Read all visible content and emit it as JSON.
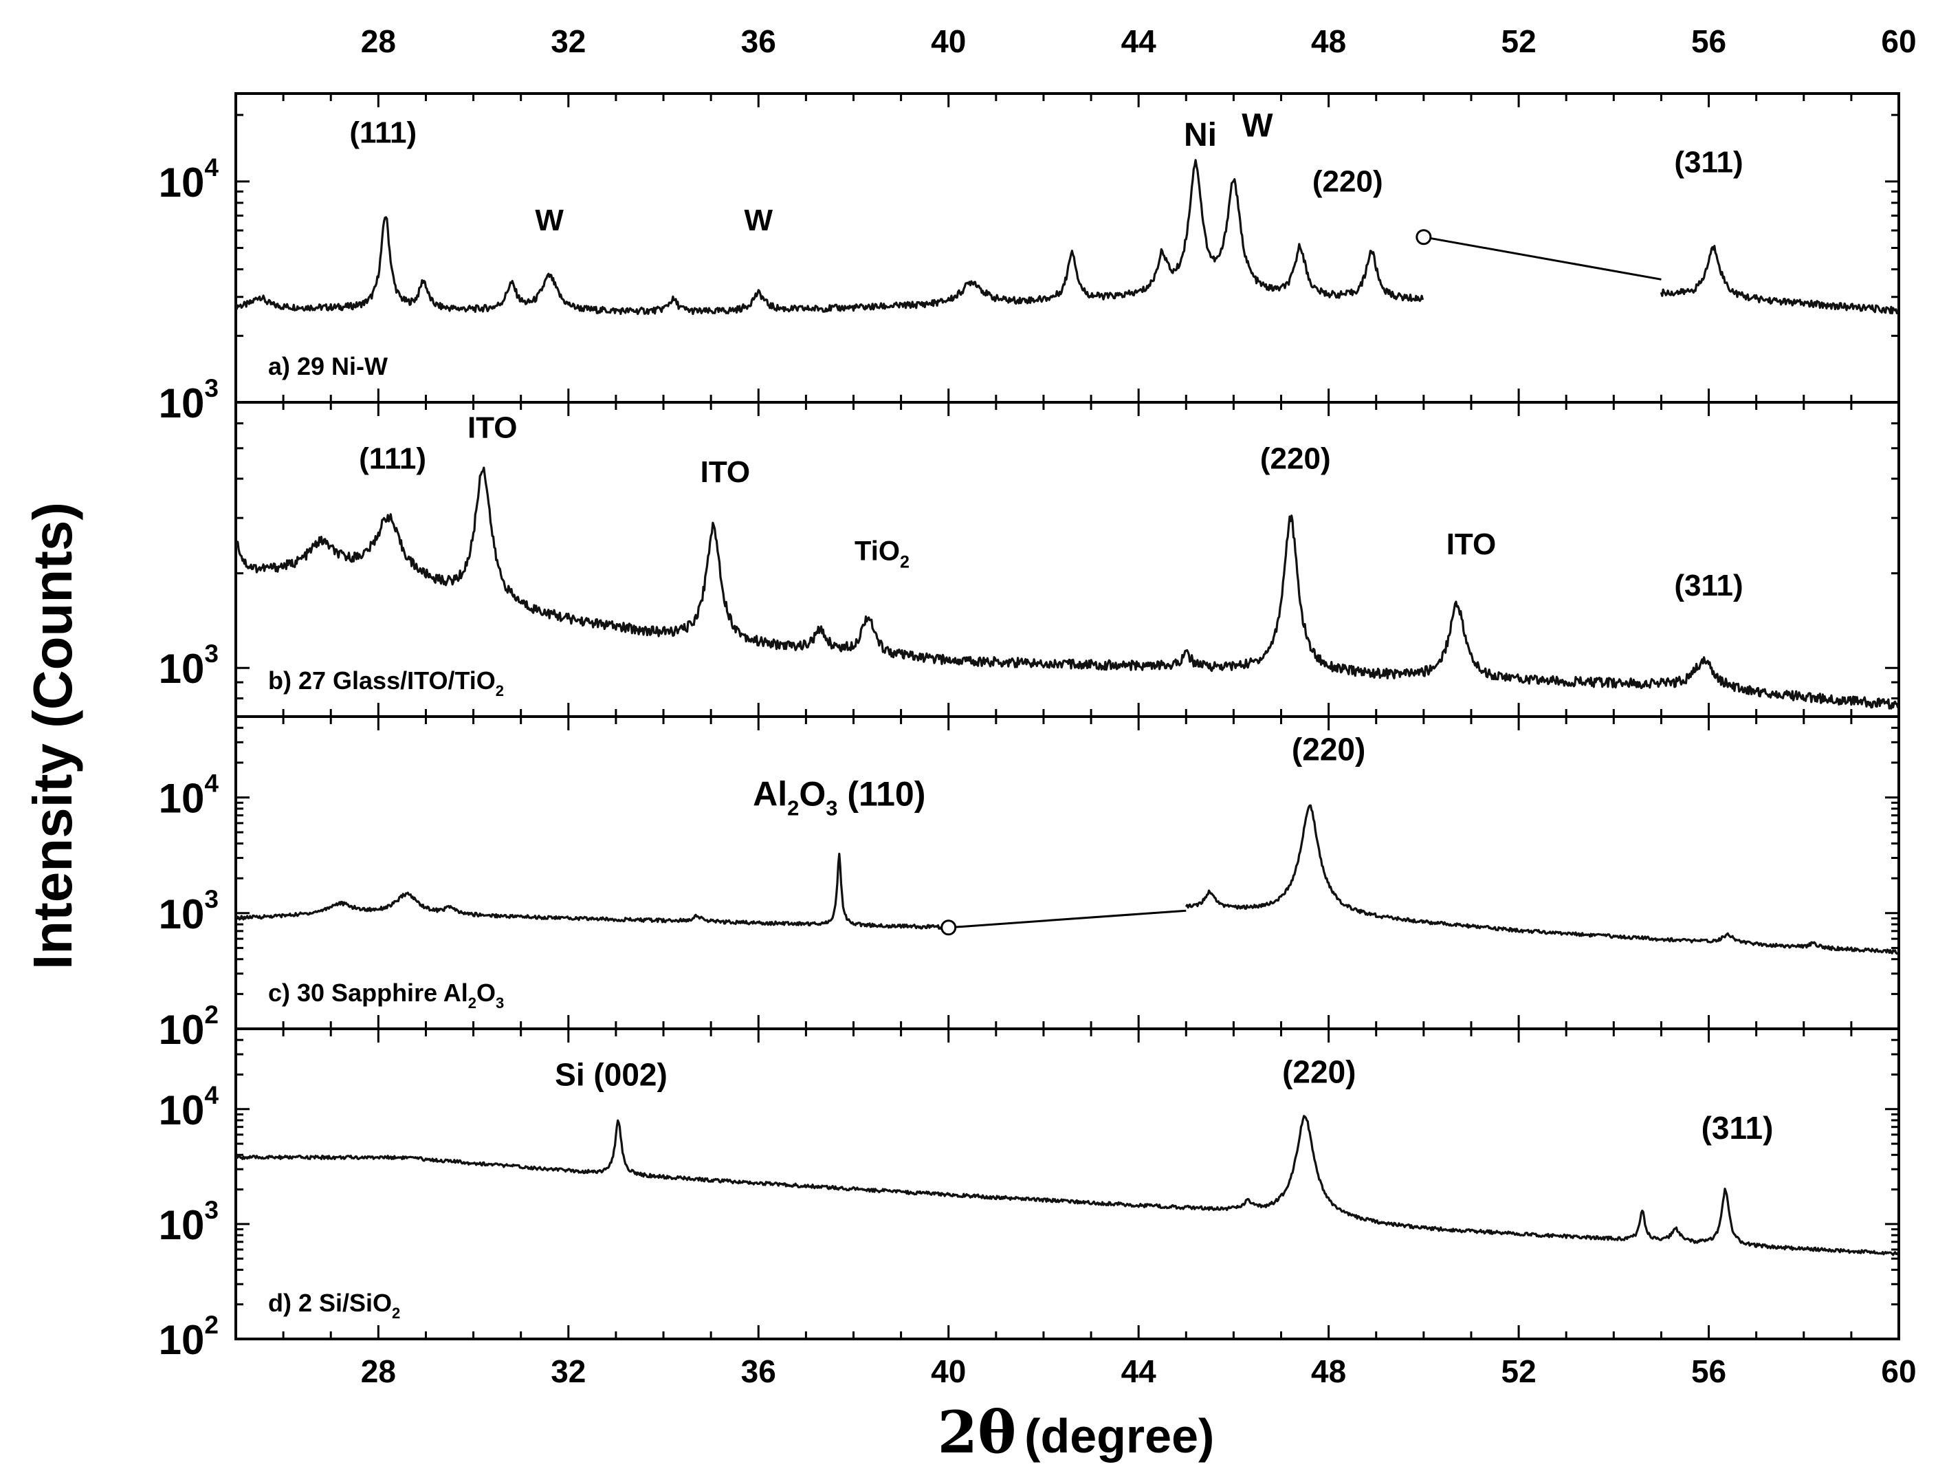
{
  "chart_data": {
    "type": "scatter",
    "x_axis": {
      "label_main": "2θ",
      "label_unit": "(degree)",
      "range": [
        25,
        60
      ],
      "ticks": [
        28,
        32,
        36,
        40,
        44,
        48,
        52,
        56,
        60
      ],
      "tick_labels": [
        "28",
        "32",
        "36",
        "40",
        "44",
        "48",
        "52",
        "56",
        "60"
      ],
      "top_ticks_mirrored": true
    },
    "y_axis": {
      "label": "Intensity (Counts)",
      "scale": "log"
    },
    "panels": [
      {
        "id": "a",
        "caption_main": "a) 29 Ni-W",
        "caption_sub": "",
        "caption_tail": "",
        "ylim": [
          1000,
          25000
        ],
        "y_tick_labels": [
          {
            "value": 10000,
            "base": "10",
            "exp": "4"
          },
          {
            "value": 1000,
            "base": "10",
            "exp": "3"
          }
        ],
        "baseline": [
          [
            25,
            2700
          ],
          [
            30,
            2600
          ],
          [
            35,
            2550
          ],
          [
            40,
            2750
          ],
          [
            45,
            3000
          ],
          [
            50,
            2900
          ],
          [
            55,
            3100
          ],
          [
            60,
            2600
          ]
        ],
        "peaks": [
          {
            "x": 25.5,
            "y": 3000,
            "w": 0.15
          },
          {
            "x": 28.15,
            "y": 7000,
            "w": 0.09
          },
          {
            "x": 28.95,
            "y": 3500,
            "w": 0.1
          },
          {
            "x": 30.8,
            "y": 3400,
            "w": 0.12
          },
          {
            "x": 31.6,
            "y": 3700,
            "w": 0.18
          },
          {
            "x": 34.2,
            "y": 2900,
            "w": 0.12
          },
          {
            "x": 36.0,
            "y": 3100,
            "w": 0.15
          },
          {
            "x": 40.5,
            "y": 3500,
            "w": 0.25
          },
          {
            "x": 42.6,
            "y": 4800,
            "w": 0.1
          },
          {
            "x": 44.5,
            "y": 4500,
            "w": 0.12
          },
          {
            "x": 45.2,
            "y": 12000,
            "w": 0.12
          },
          {
            "x": 46.0,
            "y": 10000,
            "w": 0.13
          },
          {
            "x": 47.4,
            "y": 5000,
            "w": 0.12
          },
          {
            "x": 48.9,
            "y": 4800,
            "w": 0.12
          },
          {
            "x": 56.1,
            "y": 5000,
            "w": 0.15
          }
        ],
        "gap": {
          "from": 50.0,
          "to": 55.0,
          "y_from": 5600,
          "y_to": 3600
        },
        "annotations": [
          {
            "text": "(111)",
            "sub": "",
            "tail": "",
            "x": 28.1,
            "y": 15000,
            "size": 44
          },
          {
            "text": "W",
            "sub": "",
            "tail": "",
            "x": 31.6,
            "y": 6000,
            "size": 44
          },
          {
            "text": "W",
            "sub": "",
            "tail": "",
            "x": 36.0,
            "y": 6000,
            "size": 44
          },
          {
            "text": "Ni",
            "sub": "",
            "tail": "",
            "x": 45.3,
            "y": 14500,
            "size": 48
          },
          {
            "text": "W",
            "sub": "",
            "tail": "",
            "x": 46.5,
            "y": 16000,
            "size": 48
          },
          {
            "text": "(220)",
            "sub": "",
            "tail": "",
            "x": 48.4,
            "y": 9000,
            "size": 44
          },
          {
            "text": "(311)",
            "sub": "",
            "tail": "",
            "x": 56.0,
            "y": 11000,
            "size": 44
          }
        ]
      },
      {
        "id": "b",
        "caption_main": "b) 27 Glass/ITO/TiO",
        "caption_sub": "2",
        "caption_tail": "",
        "ylim": [
          700,
          7000
        ],
        "y_tick_labels": [
          {
            "value": 1000,
            "base": "10",
            "exp": "3"
          }
        ],
        "baseline": [
          [
            25,
            2000
          ],
          [
            28,
            2100
          ],
          [
            30,
            1600
          ],
          [
            32,
            1400
          ],
          [
            35,
            1200
          ],
          [
            40,
            1050
          ],
          [
            45,
            1000
          ],
          [
            50,
            930
          ],
          [
            55,
            880
          ],
          [
            60,
            760
          ]
        ],
        "peaks": [
          {
            "x": 25.0,
            "y": 2500,
            "w": 0.12
          },
          {
            "x": 26.8,
            "y": 2500,
            "w": 0.3
          },
          {
            "x": 28.2,
            "y": 3000,
            "w": 0.25
          },
          {
            "x": 30.2,
            "y": 4300,
            "w": 0.16
          },
          {
            "x": 35.05,
            "y": 2800,
            "w": 0.15
          },
          {
            "x": 37.3,
            "y": 1300,
            "w": 0.15
          },
          {
            "x": 38.3,
            "y": 1450,
            "w": 0.15
          },
          {
            "x": 45.0,
            "y": 1100,
            "w": 0.12
          },
          {
            "x": 47.2,
            "y": 3000,
            "w": 0.14
          },
          {
            "x": 50.7,
            "y": 1600,
            "w": 0.17
          },
          {
            "x": 55.9,
            "y": 1050,
            "w": 0.25
          }
        ],
        "gap": null,
        "annotations": [
          {
            "text": "(111)",
            "sub": "",
            "tail": "",
            "x": 28.3,
            "y": 4300,
            "size": 44
          },
          {
            "text": "ITO",
            "sub": "",
            "tail": "",
            "x": 30.4,
            "y": 5400,
            "size": 44
          },
          {
            "text": "ITO",
            "sub": "",
            "tail": "",
            "x": 35.3,
            "y": 3900,
            "size": 44
          },
          {
            "text": "TiO",
            "sub": "2",
            "tail": "",
            "x": 38.6,
            "y": 2200,
            "size": 40
          },
          {
            "text": "(220)",
            "sub": "",
            "tail": "",
            "x": 47.3,
            "y": 4300,
            "size": 44
          },
          {
            "text": "ITO",
            "sub": "",
            "tail": "",
            "x": 51.0,
            "y": 2300,
            "size": 44
          },
          {
            "text": "(311)",
            "sub": "",
            "tail": "",
            "x": 56.0,
            "y": 1700,
            "size": 44
          }
        ]
      },
      {
        "id": "c",
        "caption_main": "c) 30 Sapphire Al",
        "caption_sub": "2",
        "caption_tail": "O",
        "caption_sub2": "3",
        "ylim": [
          100,
          50000
        ],
        "y_tick_labels": [
          {
            "value": 10000,
            "base": "10",
            "exp": "4"
          },
          {
            "value": 1000,
            "base": "10",
            "exp": "3"
          },
          {
            "value": 100,
            "base": "10",
            "exp": "2"
          }
        ],
        "baseline": [
          [
            25,
            900
          ],
          [
            28,
            1000
          ],
          [
            32,
            900
          ],
          [
            36,
            820
          ],
          [
            40,
            750
          ],
          [
            45,
            1100
          ],
          [
            48,
            950
          ],
          [
            52,
            700
          ],
          [
            56,
            560
          ],
          [
            60,
            460
          ]
        ],
        "peaks": [
          {
            "x": 27.2,
            "y": 1200,
            "w": 0.3
          },
          {
            "x": 28.6,
            "y": 1450,
            "w": 0.25
          },
          {
            "x": 29.5,
            "y": 1100,
            "w": 0.12
          },
          {
            "x": 34.7,
            "y": 950,
            "w": 0.1
          },
          {
            "x": 37.7,
            "y": 3200,
            "w": 0.035
          },
          {
            "x": 45.5,
            "y": 1500,
            "w": 0.12
          },
          {
            "x": 47.6,
            "y": 8500,
            "w": 0.14
          },
          {
            "x": 56.4,
            "y": 650,
            "w": 0.15
          },
          {
            "x": 58.2,
            "y": 560,
            "w": 0.08
          }
        ],
        "gap": {
          "from": 40.0,
          "to": 45.0,
          "y_from": 750,
          "y_to": 1050
        },
        "annotations": [
          {
            "text": "Al",
            "sub": "2",
            "tail": "O",
            "sub2": "3",
            "tail2": " (110)",
            "x": 37.7,
            "y": 8500,
            "size": 50
          },
          {
            "text": "(220)",
            "sub": "",
            "tail": "",
            "x": 48.0,
            "y": 21000,
            "size": 46
          }
        ]
      },
      {
        "id": "d",
        "caption_main": "d) 2 Si/SiO",
        "caption_sub": "2",
        "caption_tail": "",
        "ylim": [
          100,
          50000
        ],
        "y_tick_labels": [
          {
            "value": 10000,
            "base": "10",
            "exp": "4"
          },
          {
            "value": 1000,
            "base": "10",
            "exp": "3"
          },
          {
            "value": 100,
            "base": "10",
            "exp": "2"
          }
        ],
        "baseline": [
          [
            25,
            3800
          ],
          [
            28.5,
            3800
          ],
          [
            33,
            2700
          ],
          [
            40,
            1800
          ],
          [
            46,
            1300
          ],
          [
            50,
            900
          ],
          [
            55,
            700
          ],
          [
            60,
            550
          ]
        ],
        "peaks": [
          {
            "x": 33.05,
            "y": 8000,
            "w": 0.06
          },
          {
            "x": 46.3,
            "y": 1500,
            "w": 0.1
          },
          {
            "x": 47.5,
            "y": 8800,
            "w": 0.14
          },
          {
            "x": 54.6,
            "y": 1300,
            "w": 0.06
          },
          {
            "x": 55.3,
            "y": 900,
            "w": 0.1
          },
          {
            "x": 56.35,
            "y": 2000,
            "w": 0.07
          }
        ],
        "gap": null,
        "annotations": [
          {
            "text": "Si (002)",
            "sub": "",
            "tail": "",
            "x": 32.9,
            "y": 16000,
            "size": 46
          },
          {
            "text": "(220)",
            "sub": "",
            "tail": "",
            "x": 47.8,
            "y": 17000,
            "size": 46
          },
          {
            "text": "(311)",
            "sub": "",
            "tail": "",
            "x": 56.6,
            "y": 5500,
            "size": 46
          }
        ]
      }
    ]
  }
}
